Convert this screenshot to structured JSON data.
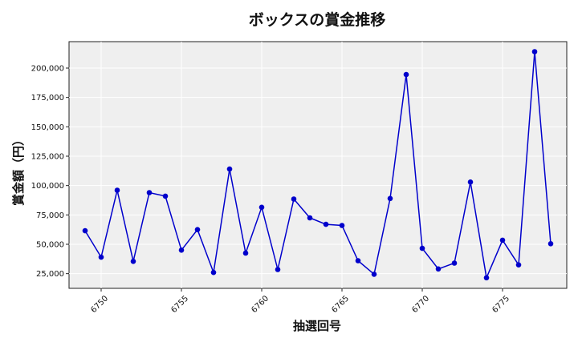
{
  "chart_data": {
    "type": "line",
    "title": "ボックスの賞金推移",
    "xlabel": "抽選回号",
    "ylabel": "賞金額（円）",
    "x": [
      6749,
      6750,
      6751,
      6752,
      6753,
      6754,
      6755,
      6756,
      6757,
      6758,
      6759,
      6760,
      6761,
      6762,
      6763,
      6764,
      6765,
      6766,
      6767,
      6768,
      6769,
      6770,
      6771,
      6772,
      6773,
      6774,
      6775,
      6776,
      6777,
      6778
    ],
    "series": [
      {
        "values": [
          61500,
          39000,
          96000,
          35500,
          94000,
          91000,
          45000,
          62500,
          26000,
          114000,
          42500,
          81500,
          28500,
          88500,
          72500,
          67000,
          66000,
          36000,
          24500,
          89000,
          194500,
          46500,
          29000,
          34000,
          103000,
          21500,
          53500,
          32500,
          214000,
          50500
        ],
        "color": "#0000cc"
      }
    ],
    "xlim": [
      6748,
      6779
    ],
    "ylim": [
      12500,
      222500
    ],
    "xticks": [
      6750,
      6755,
      6760,
      6765,
      6770,
      6775
    ],
    "xtick_labels": [
      "6750",
      "6755",
      "6760",
      "6765",
      "6770",
      "6775"
    ],
    "yticks": [
      25000,
      50000,
      75000,
      100000,
      125000,
      150000,
      175000,
      200000
    ],
    "ytick_labels": [
      "25,000",
      "50,000",
      "75,000",
      "100,000",
      "125,000",
      "150,000",
      "175,000",
      "200,000"
    ],
    "grid": true,
    "background": "#efefef"
  }
}
